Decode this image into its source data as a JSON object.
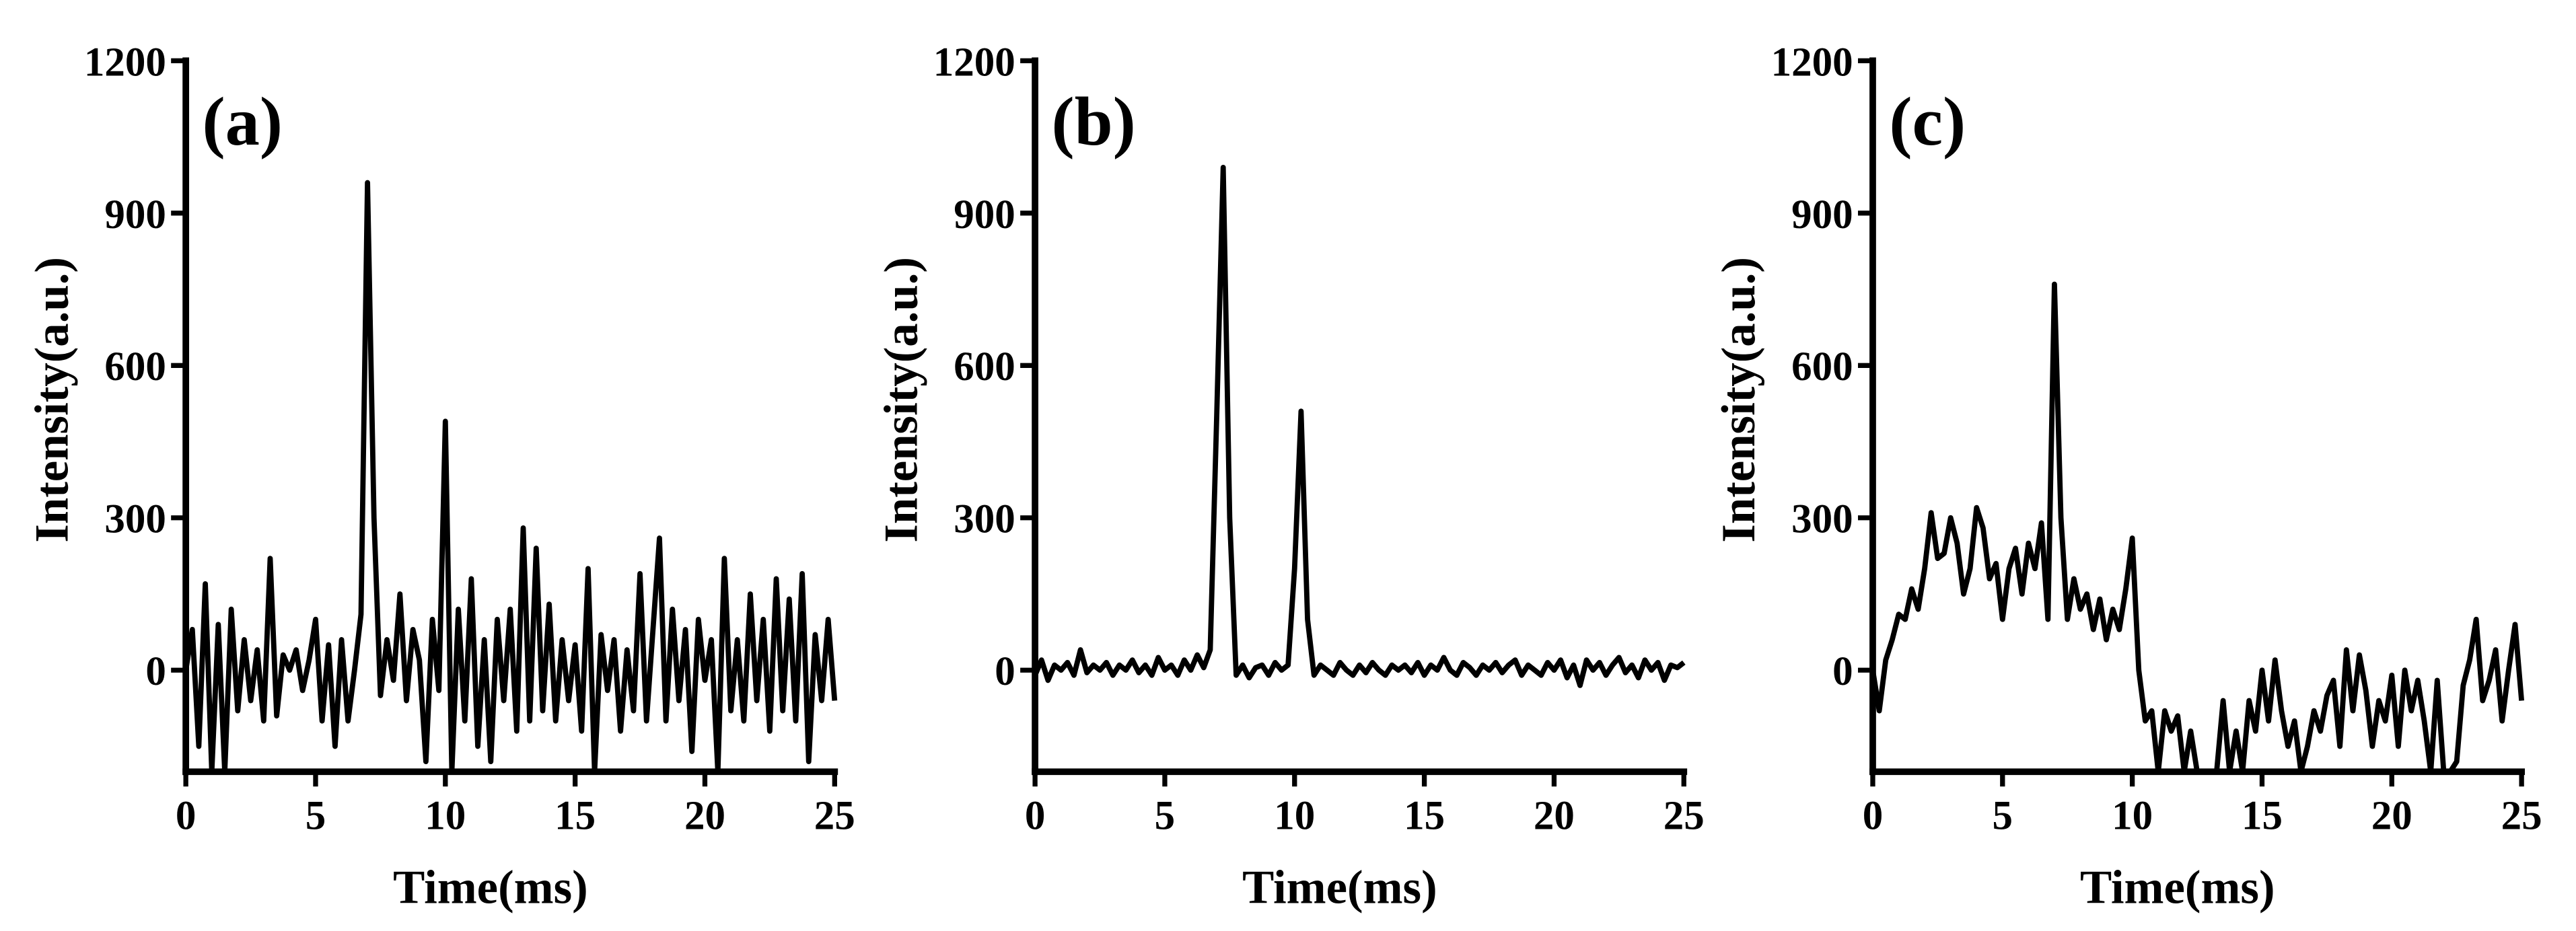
{
  "chart_data": [
    {
      "type": "line",
      "annotation": "(a)",
      "x_label": "Time(ms)",
      "y_label": "Intensity(a.u.)",
      "color": "#000000",
      "x": [
        0,
        0.25,
        0.5,
        0.75,
        1,
        1.25,
        1.5,
        1.75,
        2,
        2.25,
        2.5,
        2.75,
        3,
        3.25,
        3.5,
        3.75,
        4,
        4.25,
        4.5,
        4.75,
        5,
        5.25,
        5.5,
        5.75,
        6,
        6.25,
        6.5,
        6.75,
        7,
        7.25,
        7.5,
        7.75,
        8,
        8.25,
        8.5,
        8.75,
        9,
        9.25,
        9.5,
        9.75,
        10,
        10.25,
        10.5,
        10.75,
        11,
        11.25,
        11.5,
        11.75,
        12,
        12.25,
        12.5,
        12.75,
        13,
        13.25,
        13.5,
        13.75,
        14,
        14.25,
        14.5,
        14.75,
        15,
        15.25,
        15.5,
        15.75,
        16,
        16.25,
        16.5,
        16.75,
        17,
        17.25,
        17.5,
        17.75,
        18,
        18.25,
        18.5,
        18.75,
        19,
        19.25,
        19.5,
        19.75,
        20,
        20.25,
        20.5,
        20.75,
        21,
        21.25,
        21.5,
        21.75,
        22,
        22.25,
        22.5,
        22.75,
        23,
        23.25,
        23.5,
        23.75,
        24,
        24.25,
        24.5,
        24.75,
        25
      ],
      "values": [
        0,
        80,
        -150,
        170,
        -200,
        90,
        -200,
        120,
        -80,
        60,
        -60,
        40,
        -100,
        220,
        -90,
        30,
        0,
        40,
        -40,
        20,
        100,
        -100,
        50,
        -150,
        60,
        -100,
        0,
        110,
        960,
        300,
        -50,
        60,
        -20,
        150,
        -60,
        80,
        20,
        -180,
        100,
        -40,
        490,
        -200,
        120,
        -100,
        180,
        -150,
        60,
        -180,
        100,
        -60,
        120,
        -120,
        280,
        -100,
        240,
        -80,
        130,
        -100,
        60,
        -60,
        50,
        -120,
        200,
        -200,
        70,
        -40,
        60,
        -120,
        40,
        -80,
        190,
        -100,
        80,
        260,
        -100,
        120,
        -60,
        80,
        -160,
        100,
        -20,
        60,
        -200,
        220,
        -80,
        60,
        -100,
        150,
        -60,
        100,
        -120,
        180,
        -80,
        140,
        -100,
        190,
        -180,
        70,
        -60,
        100,
        -60
      ],
      "xlim": [
        0,
        25
      ],
      "xticks": [
        0,
        5,
        10,
        15,
        20,
        25
      ],
      "ylim": [
        -200,
        1200
      ],
      "yticks": [
        0,
        300,
        600,
        900,
        1200
      ]
    },
    {
      "type": "line",
      "annotation": "(b)",
      "x_label": "Time(ms)",
      "y_label": "Intensity(a.u.)",
      "color": "#000000",
      "x": [
        0,
        0.25,
        0.5,
        0.75,
        1,
        1.25,
        1.5,
        1.75,
        2,
        2.25,
        2.5,
        2.75,
        3,
        3.25,
        3.5,
        3.75,
        4,
        4.25,
        4.5,
        4.75,
        5,
        5.25,
        5.5,
        5.75,
        6,
        6.25,
        6.5,
        6.75,
        7,
        7.25,
        7.5,
        7.75,
        8,
        8.25,
        8.5,
        8.75,
        9,
        9.25,
        9.5,
        9.75,
        10,
        10.25,
        10.5,
        10.75,
        11,
        11.25,
        11.5,
        11.75,
        12,
        12.25,
        12.5,
        12.75,
        13,
        13.25,
        13.5,
        13.75,
        14,
        14.25,
        14.5,
        14.75,
        15,
        15.25,
        15.5,
        15.75,
        16,
        16.25,
        16.5,
        16.75,
        17,
        17.25,
        17.5,
        17.75,
        18,
        18.25,
        18.5,
        18.75,
        19,
        19.25,
        19.5,
        19.75,
        20,
        20.25,
        20.5,
        20.75,
        21,
        21.25,
        21.5,
        21.75,
        22,
        22.25,
        22.5,
        22.75,
        23,
        23.25,
        23.5,
        23.75,
        24,
        24.25,
        24.5,
        24.75,
        25
      ],
      "values": [
        -10,
        20,
        -20,
        10,
        0,
        15,
        -10,
        40,
        -5,
        10,
        0,
        15,
        -10,
        10,
        0,
        20,
        -5,
        10,
        -10,
        25,
        0,
        10,
        -10,
        20,
        0,
        30,
        5,
        40,
        500,
        990,
        300,
        -10,
        10,
        -15,
        5,
        10,
        -10,
        15,
        0,
        10,
        200,
        510,
        100,
        -10,
        10,
        0,
        -10,
        15,
        0,
        -10,
        10,
        -5,
        15,
        0,
        -10,
        10,
        0,
        10,
        -5,
        15,
        -10,
        10,
        0,
        25,
        0,
        -10,
        15,
        5,
        -10,
        10,
        0,
        15,
        -5,
        10,
        20,
        -10,
        10,
        0,
        -10,
        15,
        0,
        20,
        -15,
        10,
        -30,
        20,
        0,
        15,
        -10,
        10,
        25,
        -5,
        10,
        -15,
        20,
        0,
        15,
        -20,
        10,
        5,
        15
      ],
      "xlim": [
        0,
        25
      ],
      "xticks": [
        0,
        5,
        10,
        15,
        20,
        25
      ],
      "ylim": [
        -200,
        1200
      ],
      "yticks": [
        0,
        300,
        600,
        900,
        1200
      ]
    },
    {
      "type": "line",
      "annotation": "(c)",
      "x_label": "Time(ms)",
      "y_label": "Intensity(a.u.)",
      "color": "#000000",
      "x": [
        0,
        0.25,
        0.5,
        0.75,
        1,
        1.25,
        1.5,
        1.75,
        2,
        2.25,
        2.5,
        2.75,
        3,
        3.25,
        3.5,
        3.75,
        4,
        4.25,
        4.5,
        4.75,
        5,
        5.25,
        5.5,
        5.75,
        6,
        6.25,
        6.5,
        6.75,
        7,
        7.25,
        7.5,
        7.75,
        8,
        8.25,
        8.5,
        8.75,
        9,
        9.25,
        9.5,
        9.75,
        10,
        10.25,
        10.5,
        10.75,
        11,
        11.25,
        11.5,
        11.75,
        12,
        12.25,
        12.5,
        12.75,
        13,
        13.25,
        13.5,
        13.75,
        14,
        14.25,
        14.5,
        14.75,
        15,
        15.25,
        15.5,
        15.75,
        16,
        16.25,
        16.5,
        16.75,
        17,
        17.25,
        17.5,
        17.75,
        18,
        18.25,
        18.5,
        18.75,
        19,
        19.25,
        19.5,
        19.75,
        20,
        20.25,
        20.5,
        20.75,
        21,
        21.25,
        21.5,
        21.75,
        22,
        22.25,
        22.5,
        22.75,
        23,
        23.25,
        23.5,
        23.75,
        24,
        24.25,
        24.5,
        24.75,
        25
      ],
      "values": [
        0,
        -80,
        20,
        60,
        110,
        100,
        160,
        120,
        200,
        310,
        220,
        230,
        300,
        250,
        150,
        200,
        320,
        280,
        180,
        210,
        100,
        200,
        240,
        150,
        250,
        200,
        290,
        100,
        760,
        300,
        100,
        180,
        120,
        150,
        80,
        140,
        60,
        120,
        80,
        160,
        260,
        0,
        -100,
        -80,
        -200,
        -80,
        -120,
        -90,
        -200,
        -120,
        -200,
        -200,
        -200,
        -200,
        -60,
        -200,
        -120,
        -200,
        -60,
        -120,
        0,
        -100,
        20,
        -80,
        -150,
        -100,
        -200,
        -150,
        -80,
        -120,
        -50,
        -20,
        -150,
        40,
        -80,
        30,
        -40,
        -150,
        -60,
        -100,
        -10,
        -150,
        0,
        -80,
        -20,
        -100,
        -200,
        -20,
        -200,
        -200,
        -180,
        -30,
        20,
        100,
        -60,
        -20,
        40,
        -100,
        0,
        90,
        -60
      ],
      "xlim": [
        0,
        25
      ],
      "xticks": [
        0,
        5,
        10,
        15,
        20,
        25
      ],
      "ylim": [
        -200,
        1200
      ],
      "yticks": [
        0,
        300,
        600,
        900,
        1200
      ]
    }
  ]
}
